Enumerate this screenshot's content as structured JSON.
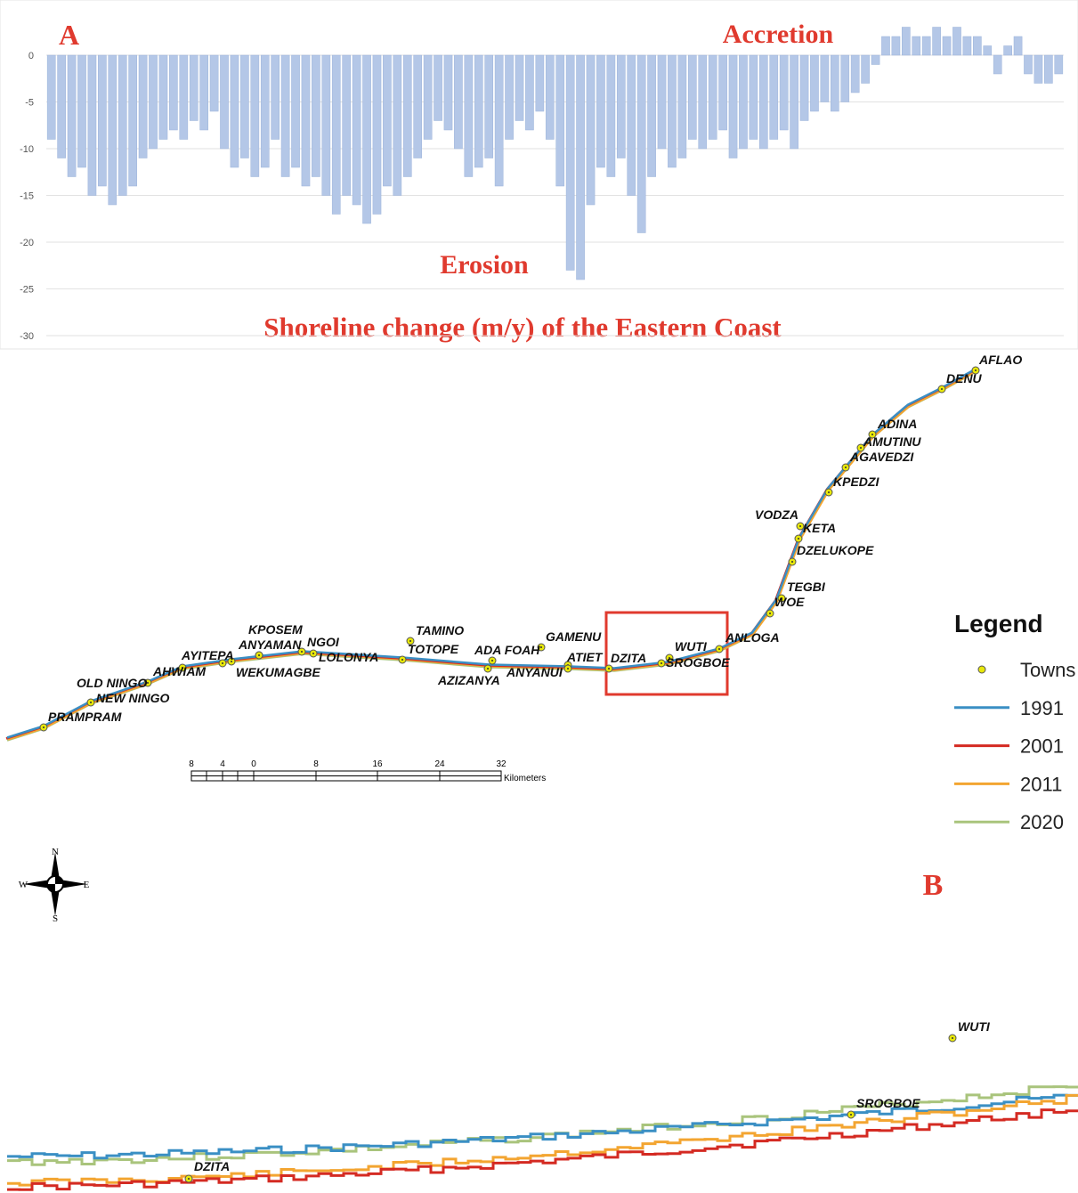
{
  "chart_data": {
    "type": "bar",
    "title": "Shoreline change (m/y) of the Eastern Coast",
    "panel_label": "A",
    "annotations": [
      "Accretion",
      "Erosion"
    ],
    "categories": [
      null,
      null,
      null,
      null,
      null,
      null,
      null,
      null,
      null,
      null,
      null,
      null,
      null,
      null,
      null,
      null,
      null,
      null,
      null,
      null,
      null,
      null,
      null,
      null,
      null,
      null,
      null,
      null,
      null,
      null,
      null,
      null,
      null,
      null,
      null,
      null,
      null,
      null,
      null,
      null,
      null,
      null,
      null,
      null,
      null,
      null,
      null,
      null,
      null,
      null,
      null,
      null,
      null,
      null,
      null,
      null,
      null,
      null,
      null,
      null,
      null,
      null,
      null,
      null,
      null,
      null,
      null,
      null,
      null,
      null,
      null,
      null,
      null,
      null,
      null,
      null,
      null,
      null,
      null,
      null,
      null,
      null,
      null,
      null,
      null,
      null,
      null,
      null,
      null,
      null,
      null,
      null,
      null,
      null,
      null,
      null,
      null,
      null,
      null,
      null
    ],
    "values": [
      -9,
      -11,
      -13,
      -12,
      -15,
      -14,
      -16,
      -15,
      -14,
      -11,
      -10,
      -9,
      -8,
      -9,
      -7,
      -8,
      -6,
      -10,
      -12,
      -11,
      -13,
      -12,
      -9,
      -13,
      -12,
      -14,
      -13,
      -15,
      -17,
      -15,
      -16,
      -18,
      -17,
      -14,
      -15,
      -13,
      -11,
      -9,
      -7,
      -8,
      -10,
      -13,
      -12,
      -11,
      -14,
      -9,
      -7,
      -8,
      -6,
      -9,
      -14,
      -23,
      -24,
      -16,
      -12,
      -13,
      -11,
      -15,
      -19,
      -13,
      -10,
      -12,
      -11,
      -9,
      -10,
      -9,
      -8,
      -11,
      -10,
      -9,
      -10,
      -9,
      -8,
      -10,
      -7,
      -6,
      -5,
      -6,
      -5,
      -4,
      -3,
      -1,
      2,
      2,
      3,
      2,
      2,
      3,
      2,
      3,
      2,
      2,
      1,
      -2,
      1,
      2,
      -2,
      -3,
      -3,
      -2
    ],
    "color": "#b4c7e7",
    "ylim": [
      -31,
      5
    ],
    "yticks": [
      -30,
      -25,
      -20,
      -15,
      -10,
      -5,
      0
    ],
    "grid": true
  },
  "map": {
    "panel_label": "B",
    "towns": [
      "AFLAO",
      "DENU",
      "ADINA",
      "AMUTINU",
      "AGAVEDZI",
      "KPEDZI",
      "VODZA",
      "KETA",
      "DZELUKOPE",
      "TEGBI",
      "WOE",
      "ANLOGA",
      "WUTI",
      "SROGBOE",
      "DZITA",
      "ATIET",
      "GAMENU",
      "ANYANUI",
      "ADA FOAH",
      "AZIZANYA",
      "TAMINO",
      "TOTOPE",
      "LOLONYA",
      "NGOI",
      "KPOSEM",
      "ANYAMAN",
      "WEKUMAGBE",
      "AYITEPA",
      "AHWIAM",
      "OLD NINGO",
      "NEW NINGO",
      "PRAMPRAM"
    ],
    "legend": {
      "title": "Legend",
      "items": [
        {
          "name": "Towns",
          "color": "#e8e80a"
        },
        {
          "name": "1991",
          "color": "#3a8fc4"
        },
        {
          "name": "2001",
          "color": "#d42a22"
        },
        {
          "name": "2011",
          "color": "#f3a531"
        },
        {
          "name": "2020",
          "color": "#a9c47c"
        }
      ]
    },
    "scale_bar": {
      "labels": [
        "8",
        "4",
        "0",
        "8",
        "16",
        "24",
        "32"
      ],
      "unit": "Kilometers"
    },
    "compass": [
      "N",
      "S",
      "W",
      "E"
    ]
  },
  "inset": {
    "towns": [
      "WUTI",
      "SROGBOE",
      "DZITA"
    ]
  }
}
